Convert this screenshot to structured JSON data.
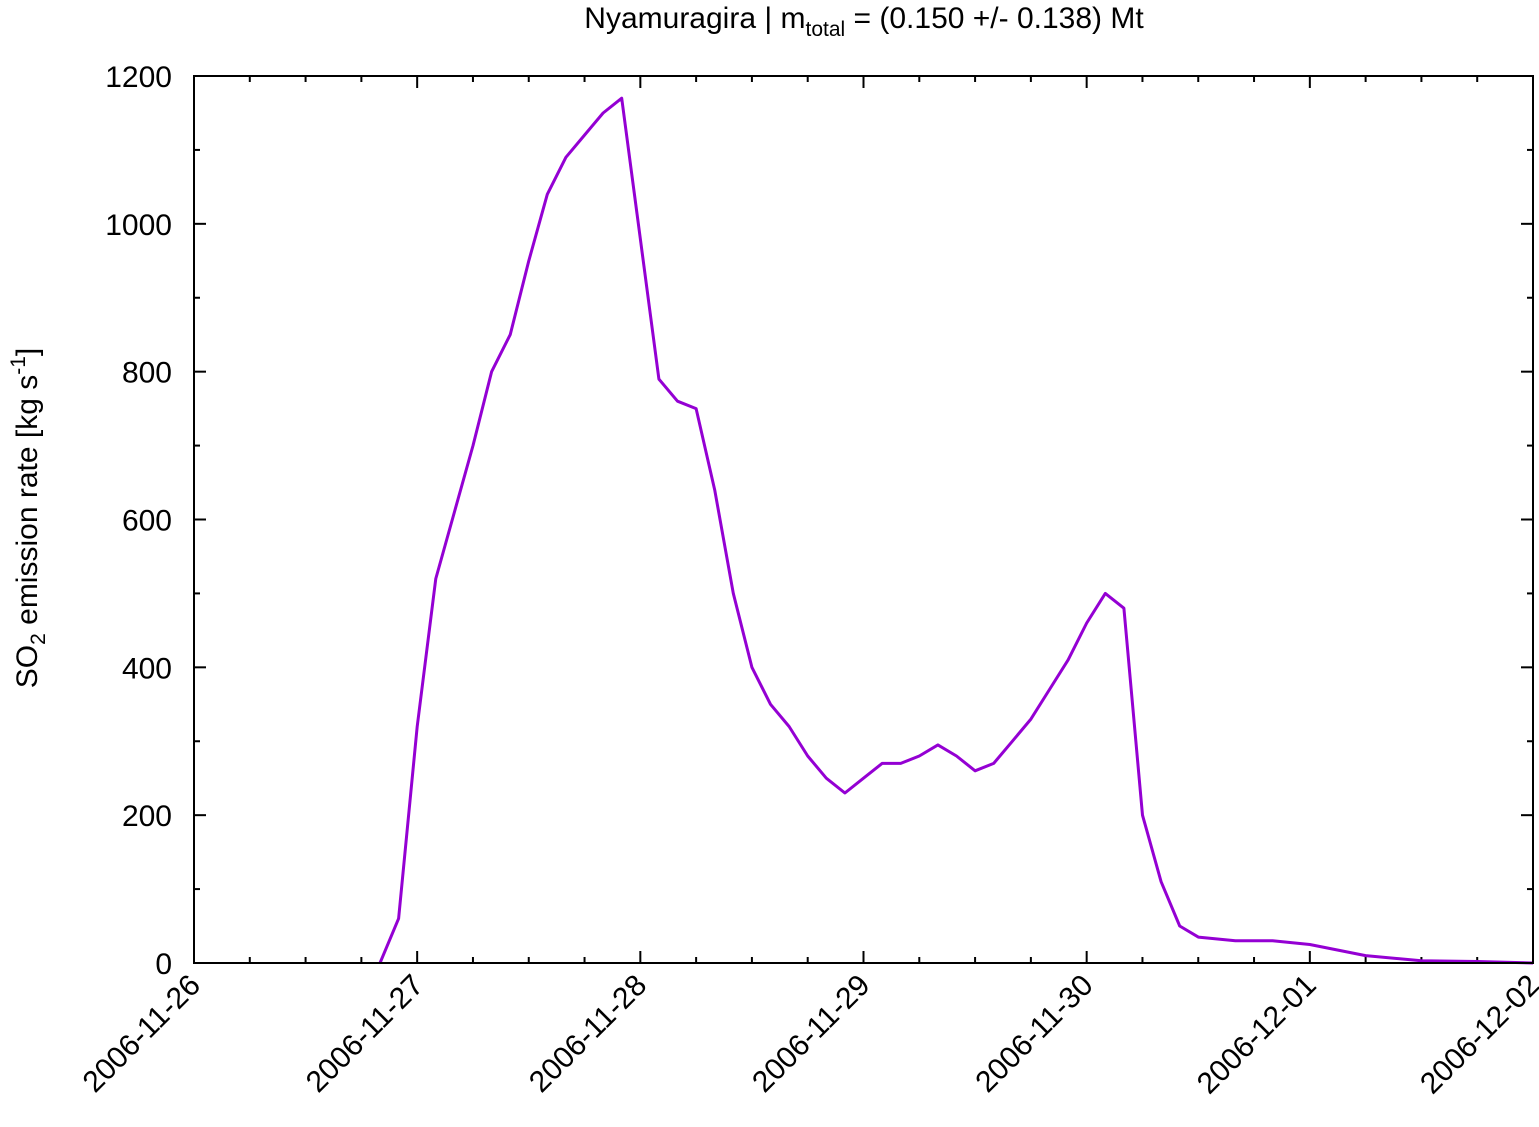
{
  "chart_data": {
    "type": "line",
    "title": {
      "prefix": "Nyamuragira | m",
      "subscript": "total",
      "suffix": " = (0.150 +/- 0.138) Mt"
    },
    "ylabel": {
      "part1": "SO",
      "sub": "2",
      "part2": " emission rate [kg s",
      "sup": "-1",
      "part3": "]"
    },
    "xlabel": "",
    "x_ticks": [
      "2006-11-26",
      "2006-11-27",
      "2006-11-28",
      "2006-11-29",
      "2006-11-30",
      "2006-12-01",
      "2006-12-02"
    ],
    "y_ticks": [
      "0",
      "200",
      "400",
      "600",
      "800",
      "1000",
      "1200"
    ],
    "ylim": [
      0,
      1200
    ],
    "xlim": [
      "2006-11-26",
      "2006-12-02"
    ],
    "grid": false,
    "color": "#9400d3",
    "series": [
      {
        "x": [
          "2006-11-26T20:00",
          "2006-11-26T22:00",
          "2006-11-27T00:00",
          "2006-11-27T02:00",
          "2006-11-27T04:00",
          "2006-11-27T06:00",
          "2006-11-27T08:00",
          "2006-11-27T10:00",
          "2006-11-27T12:00",
          "2006-11-27T14:00",
          "2006-11-27T16:00",
          "2006-11-27T18:00",
          "2006-11-27T20:00",
          "2006-11-27T22:00",
          "2006-11-28T00:00",
          "2006-11-28T02:00",
          "2006-11-28T04:00",
          "2006-11-28T06:00",
          "2006-11-28T08:00",
          "2006-11-28T10:00",
          "2006-11-28T12:00",
          "2006-11-28T14:00",
          "2006-11-28T16:00",
          "2006-11-28T18:00",
          "2006-11-28T20:00",
          "2006-11-28T22:00",
          "2006-11-29T00:00",
          "2006-11-29T02:00",
          "2006-11-29T04:00",
          "2006-11-29T06:00",
          "2006-11-29T08:00",
          "2006-11-29T10:00",
          "2006-11-29T12:00",
          "2006-11-29T14:00",
          "2006-11-29T16:00",
          "2006-11-29T18:00",
          "2006-11-29T20:00",
          "2006-11-29T22:00",
          "2006-11-30T00:00",
          "2006-11-30T02:00",
          "2006-11-30T04:00",
          "2006-11-30T06:00",
          "2006-11-30T08:00",
          "2006-11-30T10:00",
          "2006-11-30T12:00",
          "2006-11-30T16:00",
          "2006-11-30T20:00",
          "2006-12-01T00:00",
          "2006-12-01T06:00",
          "2006-12-01T12:00",
          "2006-12-01T18:00",
          "2006-12-02T00:00"
        ],
        "values": [
          0,
          60,
          320,
          520,
          610,
          700,
          800,
          850,
          950,
          1040,
          1090,
          1120,
          1150,
          1170,
          980,
          790,
          760,
          750,
          640,
          500,
          400,
          350,
          320,
          280,
          250,
          230,
          250,
          270,
          270,
          280,
          295,
          280,
          260,
          270,
          300,
          330,
          370,
          410,
          460,
          500,
          480,
          200,
          110,
          50,
          35,
          30,
          30,
          25,
          10,
          3,
          2,
          0
        ]
      }
    ]
  }
}
